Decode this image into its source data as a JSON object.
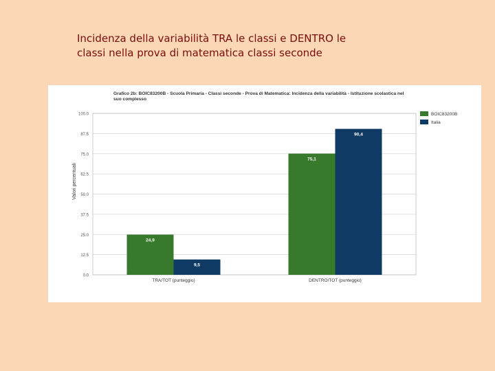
{
  "slide": {
    "title": "Incidenza della variabilità TRA le classi e DENTRO le classi nella prova di matematica classi seconde"
  },
  "chart_data": {
    "type": "bar",
    "title": "Grafico 2b: BOIC83200B - Scuola Primaria - Classi seconde - Prova di Matematica: Incidenza della variabilità - Istituzione scolastica nel suo complesso",
    "ylabel": "Valori percentuali",
    "xlabel": "",
    "categories": [
      "TRA/TOT (punteggio)",
      "DENTRO/TOT (punteggio)"
    ],
    "series": [
      {
        "name": "BOIC83200B",
        "values": [
          24.9,
          75.1
        ],
        "labels": [
          "24,9",
          "75,1"
        ],
        "color": "#377a2b"
      },
      {
        "name": "Italia",
        "values": [
          9.5,
          90.4
        ],
        "labels": [
          "9,5",
          "90,4"
        ],
        "color": "#0e3a64"
      }
    ],
    "ylim": [
      0,
      100
    ],
    "yticks": [
      "0.0",
      "12.5",
      "25.0",
      "37.5",
      "50.0",
      "62.5",
      "75.0",
      "87.5",
      "100.0"
    ],
    "grid": true,
    "legend": "right"
  }
}
